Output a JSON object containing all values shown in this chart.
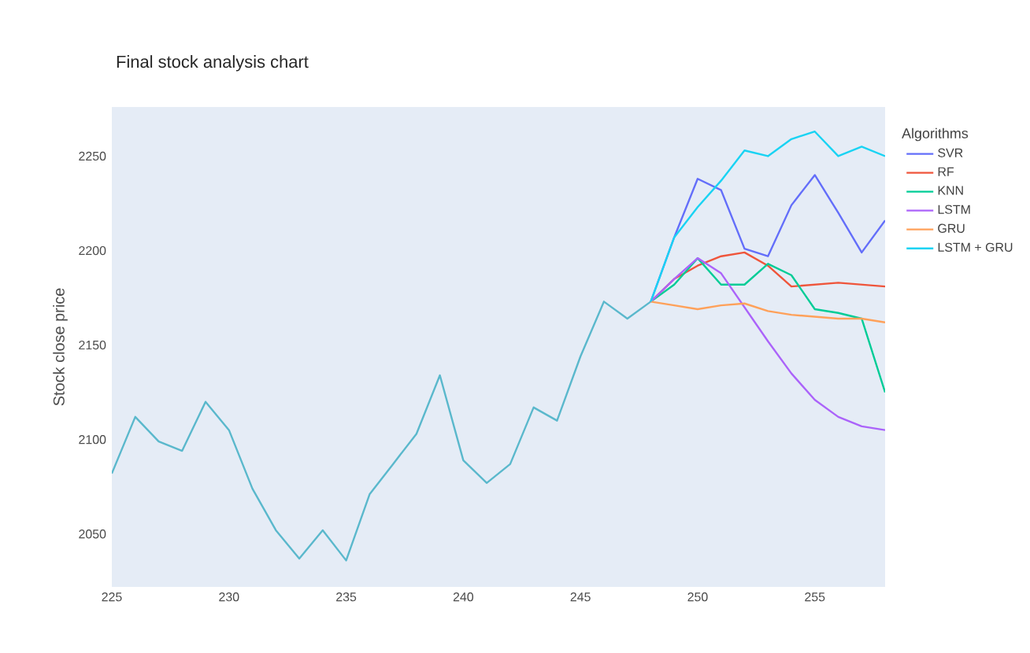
{
  "chart_data": {
    "type": "line",
    "title": "Final stock analysis chart",
    "ylabel": "Stock close price",
    "legend_title": "Algorithms",
    "xlim": [
      225,
      258
    ],
    "ylim": [
      2022,
      2276
    ],
    "xticks": [
      225,
      230,
      235,
      240,
      245,
      250,
      255
    ],
    "yticks": [
      2050,
      2100,
      2150,
      2200,
      2250
    ],
    "grid": false,
    "legend": "right",
    "series": [
      {
        "color": "#5ab8cc",
        "x": [
          225,
          226,
          227,
          228,
          229,
          230,
          231,
          232,
          233,
          234,
          235,
          236,
          237,
          238,
          239,
          240,
          241,
          242,
          243,
          244,
          245,
          246,
          247,
          248
        ],
        "values": [
          2082,
          2112,
          2099,
          2094,
          2120,
          2105,
          2074,
          2052,
          2037,
          2052,
          2036,
          2071,
          2087,
          2103,
          2134,
          2089,
          2077,
          2087,
          2117,
          2110,
          2144,
          2173,
          2164,
          2173
        ]
      },
      {
        "name": "SVR",
        "color": "#636efa",
        "x": [
          248,
          249,
          250,
          251,
          252,
          253,
          254,
          255,
          256,
          257,
          258
        ],
        "values": [
          2173,
          2207,
          2238,
          2232,
          2201,
          2197,
          2224,
          2240,
          2220,
          2199,
          2216
        ]
      },
      {
        "name": "RF",
        "color": "#ef553b",
        "x": [
          248,
          249,
          250,
          251,
          252,
          253,
          254,
          255,
          256,
          257,
          258
        ],
        "values": [
          2173,
          2185,
          2192,
          2197,
          2199,
          2192,
          2181,
          2182,
          2183,
          2182,
          2181
        ]
      },
      {
        "name": "KNN",
        "color": "#00cc96",
        "x": [
          248,
          249,
          250,
          251,
          252,
          253,
          254,
          255,
          256,
          257,
          258
        ],
        "values": [
          2173,
          2182,
          2196,
          2182,
          2182,
          2193,
          2187,
          2169,
          2167,
          2164,
          2125
        ]
      },
      {
        "name": "LSTM",
        "color": "#ab63fa",
        "x": [
          248,
          249,
          250,
          251,
          252,
          253,
          254,
          255,
          256,
          257,
          258
        ],
        "values": [
          2173,
          2185,
          2196,
          2188,
          2170,
          2152,
          2135,
          2121,
          2112,
          2107,
          2105
        ]
      },
      {
        "name": "GRU",
        "color": "#ffa15a",
        "x": [
          248,
          249,
          250,
          251,
          252,
          253,
          254,
          255,
          256,
          257,
          258
        ],
        "values": [
          2173,
          2171,
          2169,
          2171,
          2172,
          2168,
          2166,
          2165,
          2164,
          2164,
          2162
        ]
      },
      {
        "name": "LSTM + GRU",
        "color": "#19d3f3",
        "x": [
          248,
          249,
          250,
          251,
          252,
          253,
          254,
          255,
          256,
          257,
          258
        ],
        "values": [
          2173,
          2207,
          2223,
          2237,
          2253,
          2250,
          2259,
          2263,
          2250,
          2255,
          2250
        ]
      }
    ]
  }
}
